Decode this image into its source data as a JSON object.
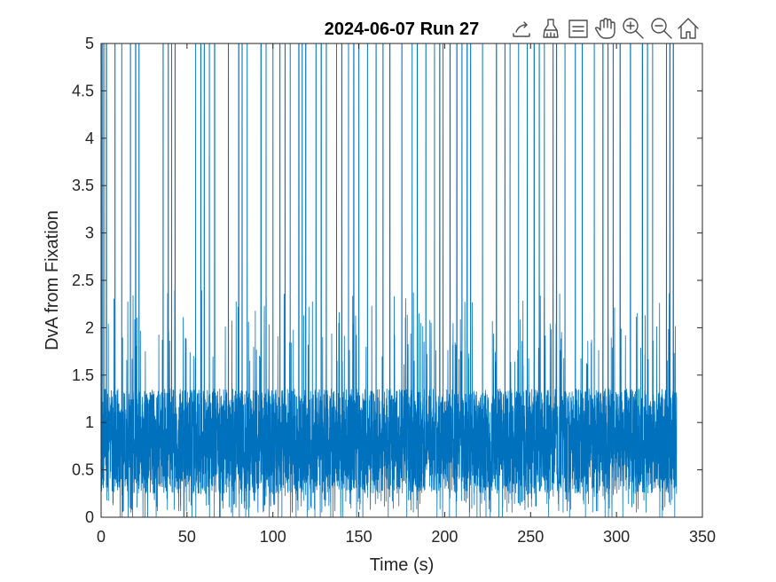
{
  "chart_data": {
    "type": "line",
    "title": "2024-06-07 Run 27",
    "xlabel": "Time (s)",
    "ylabel": "DvA from Fixation",
    "xlim": [
      0,
      350
    ],
    "ylim": [
      0,
      5
    ],
    "xticks": [
      "0",
      "50",
      "100",
      "150",
      "200",
      "250",
      "300",
      "350"
    ],
    "yticks": [
      "0",
      "0.5",
      "1",
      "1.5",
      "2",
      "2.5",
      "3",
      "3.5",
      "4",
      "4.5",
      "5"
    ],
    "grid": false,
    "series": [
      {
        "color": "#0072BD",
        "x_range": [
          0,
          335
        ],
        "typical_range": [
          0.2,
          1.5
        ],
        "saccade_times_s": [
          0.5,
          1.5,
          3,
          8,
          12,
          17,
          20,
          22,
          36,
          39,
          41,
          43,
          55,
          58,
          60,
          63,
          66,
          74,
          80,
          82,
          85,
          93,
          96,
          100,
          104,
          107,
          110,
          115,
          117,
          119,
          125,
          128,
          131,
          137,
          140,
          144,
          147,
          150,
          155,
          160,
          164,
          168,
          175,
          181,
          184,
          189,
          194,
          197,
          199,
          203,
          207,
          210,
          213,
          215,
          222,
          230,
          235,
          238,
          243,
          248,
          252,
          255,
          258,
          263,
          265,
          270,
          276,
          280,
          287,
          292,
          295,
          298,
          302,
          308,
          315,
          318,
          321,
          329,
          331,
          333
        ]
      }
    ]
  },
  "toolbar": {
    "icons": [
      "export-icon",
      "brush-icon",
      "datatip-icon",
      "pan-icon",
      "zoom-in-icon",
      "zoom-out-icon",
      "home-icon"
    ]
  }
}
